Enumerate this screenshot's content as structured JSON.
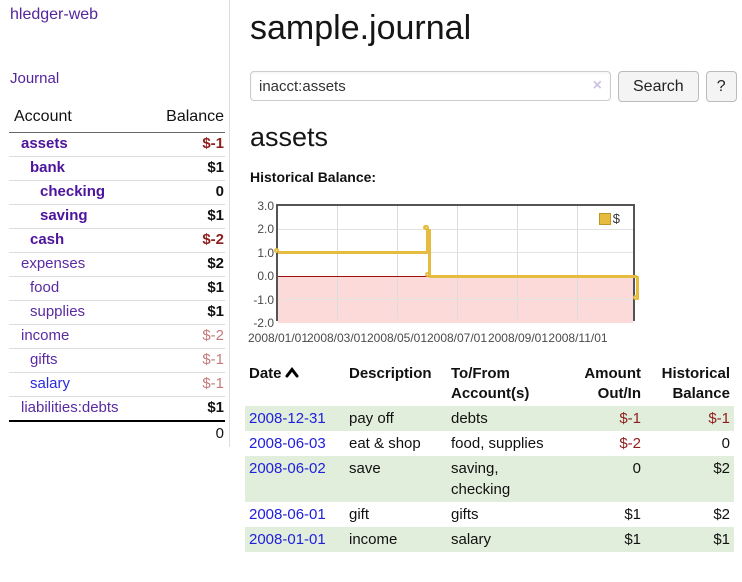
{
  "app": {
    "brand": "hledger-web",
    "nav_journal": "Journal"
  },
  "sidebar": {
    "col_account": "Account",
    "col_balance": "Balance",
    "accounts": [
      {
        "name": "assets",
        "balance": "$-1"
      },
      {
        "name": "bank",
        "balance": "$1"
      },
      {
        "name": "checking",
        "balance": "0"
      },
      {
        "name": "saving",
        "balance": "$1"
      },
      {
        "name": "cash",
        "balance": "$-2"
      },
      {
        "name": "expenses",
        "balance": "$2"
      },
      {
        "name": "food",
        "balance": "$1"
      },
      {
        "name": "supplies",
        "balance": "$1"
      },
      {
        "name": "income",
        "balance": "$-2"
      },
      {
        "name": "gifts",
        "balance": "$-1"
      },
      {
        "name": "salary",
        "balance": "$-1"
      },
      {
        "name": "liabilities:debts",
        "balance": "$1"
      }
    ],
    "total": "0"
  },
  "header": {
    "title": "sample.journal"
  },
  "search": {
    "value": "inacct:assets",
    "clear_label": "×",
    "button": "Search",
    "help": "?"
  },
  "account_page": {
    "title": "assets",
    "chart_label": "Historical Balance:"
  },
  "chart_data": {
    "type": "line",
    "step": true,
    "title": "Historical Balance",
    "legend": "$",
    "legend_position": "top-right",
    "grid": true,
    "ylim": [
      -2,
      3
    ],
    "y_ticks": [
      "3.0",
      "2.0",
      "1.0",
      "0.0",
      "-1.0",
      "-2.0"
    ],
    "x_start": "2008-01-01",
    "x_end": "2008-12-31",
    "x_ticks": [
      "2008/01/01",
      "2008/03/01",
      "2008/05/01",
      "2008/07/01",
      "2008/09/01",
      "2008/11/01"
    ],
    "x_tick_dates": [
      "2008-01-01",
      "2008-03-01",
      "2008-05-01",
      "2008-07-01",
      "2008-09-01",
      "2008-11-01"
    ],
    "series": [
      {
        "name": "$",
        "color": "#e5bc3f",
        "points": [
          {
            "x": "2008-01-01",
            "y": 1
          },
          {
            "x": "2008-06-01",
            "y": 2
          },
          {
            "x": "2008-06-02",
            "y": 2
          },
          {
            "x": "2008-06-03",
            "y": 0
          },
          {
            "x": "2008-12-31",
            "y": -1
          }
        ]
      }
    ],
    "negative_region_color": "#fcdada",
    "zero_line_color": "#991111"
  },
  "register": {
    "columns": {
      "date": "Date",
      "description": "Description",
      "tofrom_1": "To/From",
      "tofrom_2": "Account(s)",
      "amount_1": "Amount",
      "amount_2": "Out/In",
      "hist_1": "Historical",
      "hist_2": "Balance"
    },
    "rows": [
      {
        "date": "2008-12-31",
        "description": "pay off",
        "accounts": "debts",
        "amount": "$-1",
        "balance": "$-1"
      },
      {
        "date": "2008-06-03",
        "description": "eat & shop",
        "accounts": "food, supplies",
        "amount": "$-2",
        "balance": "0"
      },
      {
        "date": "2008-06-02",
        "description": "save",
        "accounts": "saving, checking",
        "amount": "0",
        "balance": "$2"
      },
      {
        "date": "2008-06-01",
        "description": "gift",
        "accounts": "gifts",
        "amount": "$1",
        "balance": "$2"
      },
      {
        "date": "2008-01-01",
        "description": "income",
        "accounts": "salary",
        "amount": "$1",
        "balance": "$1"
      }
    ]
  }
}
